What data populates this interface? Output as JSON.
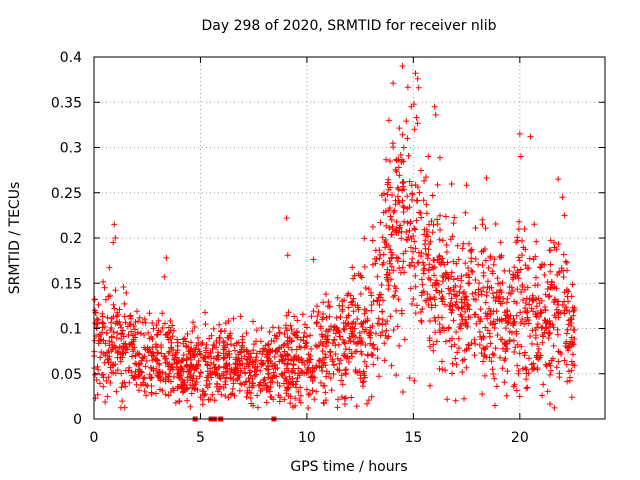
{
  "chart_data": {
    "type": "scatter",
    "title": "Day 298 of 2020, SRMTID for receiver nlib",
    "xlabel": "GPS time / hours",
    "ylabel": "SRMTID / TECUs",
    "xlim": [
      0,
      24
    ],
    "ylim": [
      0,
      0.4
    ],
    "x_ticks": [
      0,
      5,
      10,
      15,
      20
    ],
    "x_tick_labels": [
      "0",
      "5",
      "10",
      "15",
      "20"
    ],
    "y_ticks": [
      0,
      0.05,
      0.1,
      0.15,
      0.2,
      0.25,
      0.3,
      0.35,
      0.4
    ],
    "y_tick_labels": [
      "0",
      "0.05",
      "0.1",
      "0.15",
      "0.2",
      "0.25",
      "0.3",
      "0.35",
      "0.4"
    ],
    "grid": true,
    "marker": "plus",
    "color": "#ff0000",
    "zero_markers_x": [
      4.75,
      5.5,
      5.65,
      5.95,
      8.45
    ],
    "trend": [
      {
        "x": 0.0,
        "y": 0.085,
        "s": 0.028
      },
      {
        "x": 1.0,
        "y": 0.085,
        "s": 0.03
      },
      {
        "x": 2.0,
        "y": 0.07,
        "s": 0.025
      },
      {
        "x": 3.0,
        "y": 0.065,
        "s": 0.022
      },
      {
        "x": 4.0,
        "y": 0.06,
        "s": 0.022
      },
      {
        "x": 5.0,
        "y": 0.06,
        "s": 0.02
      },
      {
        "x": 6.0,
        "y": 0.06,
        "s": 0.022
      },
      {
        "x": 7.0,
        "y": 0.06,
        "s": 0.02
      },
      {
        "x": 8.0,
        "y": 0.058,
        "s": 0.02
      },
      {
        "x": 9.0,
        "y": 0.065,
        "s": 0.025
      },
      {
        "x": 10.0,
        "y": 0.07,
        "s": 0.028
      },
      {
        "x": 11.0,
        "y": 0.08,
        "s": 0.03
      },
      {
        "x": 12.0,
        "y": 0.09,
        "s": 0.035
      },
      {
        "x": 13.0,
        "y": 0.09,
        "s": 0.035
      },
      {
        "x": 13.5,
        "y": 0.14,
        "s": 0.05
      },
      {
        "x": 14.0,
        "y": 0.2,
        "s": 0.06
      },
      {
        "x": 14.5,
        "y": 0.22,
        "s": 0.06
      },
      {
        "x": 15.0,
        "y": 0.2,
        "s": 0.06
      },
      {
        "x": 16.0,
        "y": 0.15,
        "s": 0.05
      },
      {
        "x": 17.0,
        "y": 0.13,
        "s": 0.045
      },
      {
        "x": 18.0,
        "y": 0.12,
        "s": 0.045
      },
      {
        "x": 19.0,
        "y": 0.11,
        "s": 0.04
      },
      {
        "x": 20.0,
        "y": 0.12,
        "s": 0.05
      },
      {
        "x": 21.0,
        "y": 0.11,
        "s": 0.04
      },
      {
        "x": 22.0,
        "y": 0.12,
        "s": 0.045
      },
      {
        "x": 22.6,
        "y": 0.09,
        "s": 0.03
      }
    ],
    "n_points": 2200,
    "outliers": [
      {
        "x": 0.95,
        "y": 0.215
      },
      {
        "x": 1.0,
        "y": 0.2
      },
      {
        "x": 0.9,
        "y": 0.195
      },
      {
        "x": 3.4,
        "y": 0.178
      },
      {
        "x": 3.3,
        "y": 0.157
      },
      {
        "x": 9.05,
        "y": 0.222
      },
      {
        "x": 9.1,
        "y": 0.181
      },
      {
        "x": 13.85,
        "y": 0.33
      },
      {
        "x": 14.05,
        "y": 0.371
      },
      {
        "x": 14.9,
        "y": 0.345
      },
      {
        "x": 15.1,
        "y": 0.382
      },
      {
        "x": 15.2,
        "y": 0.376
      },
      {
        "x": 15.25,
        "y": 0.366
      },
      {
        "x": 15.15,
        "y": 0.333
      },
      {
        "x": 16.0,
        "y": 0.345
      },
      {
        "x": 16.05,
        "y": 0.336
      },
      {
        "x": 15.05,
        "y": 0.32
      },
      {
        "x": 14.55,
        "y": 0.3
      },
      {
        "x": 15.7,
        "y": 0.29
      },
      {
        "x": 20.0,
        "y": 0.315
      },
      {
        "x": 20.5,
        "y": 0.312
      },
      {
        "x": 20.05,
        "y": 0.29
      },
      {
        "x": 21.8,
        "y": 0.265
      },
      {
        "x": 22.0,
        "y": 0.245
      },
      {
        "x": 22.1,
        "y": 0.225
      }
    ]
  }
}
